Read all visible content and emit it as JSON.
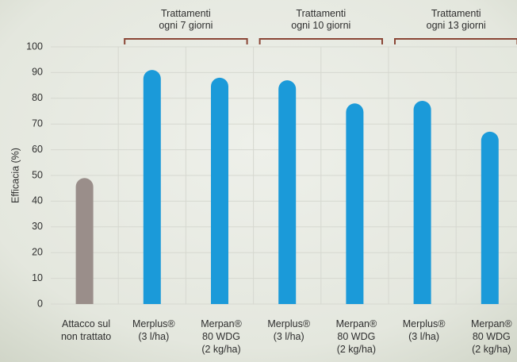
{
  "chart_data": {
    "type": "bar",
    "y_label": "Efficacia (%)",
    "categories": [
      "Attacco sul\nnon trattato",
      "Merplus®\n(3 l/ha)",
      "Merpan®\n80 WDG\n(2 kg/ha)",
      "Merplus®\n(3 l/ha)",
      "Merpan®\n80 WDG\n(2 kg/ha)",
      "Merplus®\n(3 l/ha)",
      "Merpan®\n80 WDG\n(2 kg/ha)"
    ],
    "values": [
      49,
      91,
      88,
      87,
      78,
      79,
      67
    ],
    "colors": [
      "#9a8e8a",
      "#1b9ad9",
      "#1b9ad9",
      "#1b9ad9",
      "#1b9ad9",
      "#1b9ad9",
      "#1b9ad9"
    ],
    "groups": [
      "Trattamenti\nogni 7 giorni",
      "Trattamenti\nogni 10 giorni",
      "Trattamenti\nogni 13 giorni"
    ],
    "ylim": [
      0,
      100
    ],
    "yticks": [
      0,
      10,
      20,
      30,
      40,
      50,
      60,
      70,
      80,
      90,
      100
    ],
    "grid": true
  }
}
